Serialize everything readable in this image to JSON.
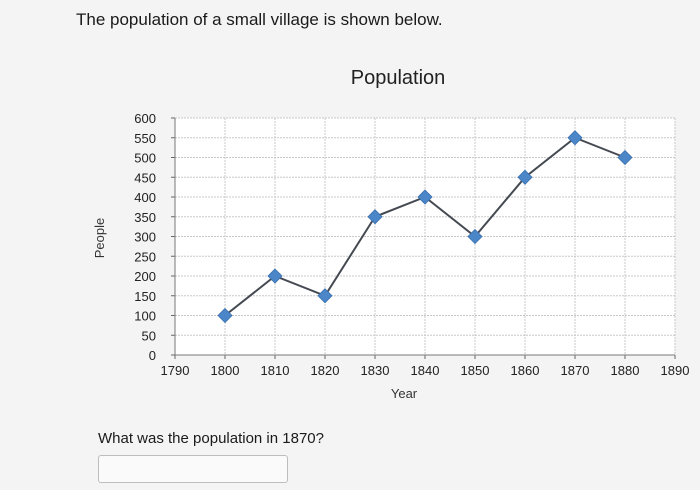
{
  "question": {
    "intro": "The population of a small village is shown below.",
    "prompt": "What was the population in 1870?",
    "answer_value": ""
  },
  "chart_data": {
    "type": "line",
    "title": "Population",
    "xlabel": "Year",
    "ylabel": "People",
    "x_ticks": [
      1790,
      1800,
      1810,
      1820,
      1830,
      1840,
      1850,
      1860,
      1870,
      1880,
      1890
    ],
    "y_ticks": [
      0,
      50,
      100,
      150,
      200,
      250,
      300,
      350,
      400,
      450,
      500,
      550,
      600
    ],
    "xlim": [
      1790,
      1890
    ],
    "ylim": [
      0,
      600
    ],
    "grid": true,
    "series": [
      {
        "color": "#4a86c8",
        "x": [
          1800,
          1810,
          1820,
          1830,
          1840,
          1850,
          1860,
          1870,
          1880
        ],
        "y": [
          100,
          200,
          150,
          350,
          400,
          300,
          450,
          550,
          500
        ]
      }
    ]
  }
}
